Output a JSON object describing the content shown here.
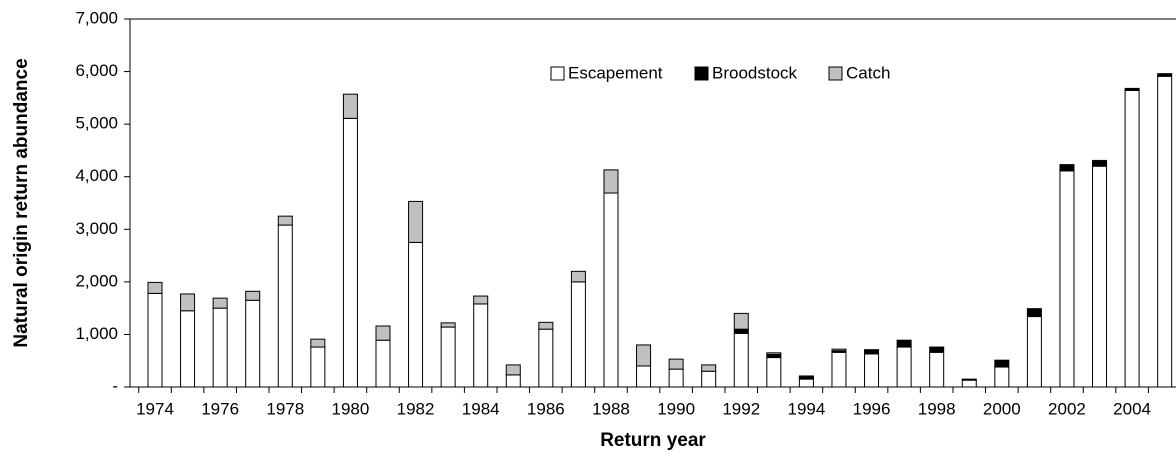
{
  "chart_data": {
    "type": "stacked_bar",
    "categories": [
      "1974",
      null,
      "1976",
      null,
      "1978",
      null,
      "1980",
      null,
      "1982",
      null,
      "1984",
      null,
      "1986",
      null,
      "1988",
      null,
      "1990",
      null,
      "1992",
      null,
      "1994",
      null,
      "1996",
      null,
      "1998",
      null,
      "2000",
      null,
      "2002",
      null,
      "2004",
      null
    ],
    "series": [
      {
        "name": "Escapement",
        "color": "#ffffff",
        "values": [
          1780,
          1450,
          1500,
          1650,
          3080,
          760,
          5110,
          890,
          2750,
          1140,
          1580,
          230,
          1100,
          2000,
          3690,
          400,
          340,
          300,
          1020,
          560,
          150,
          660,
          630,
          760,
          660,
          130,
          380,
          1340,
          4110,
          4200,
          5640,
          5910
        ]
      },
      {
        "name": "Broodstock",
        "color": "#000000",
        "values": [
          0,
          0,
          0,
          0,
          0,
          0,
          0,
          0,
          0,
          0,
          0,
          0,
          0,
          0,
          0,
          0,
          0,
          0,
          80,
          60,
          40,
          30,
          70,
          130,
          90,
          20,
          130,
          150,
          120,
          90,
          40,
          50
        ]
      },
      {
        "name": "Catch",
        "color": "#c0c0c0",
        "values": [
          210,
          320,
          190,
          170,
          170,
          150,
          460,
          270,
          780,
          80,
          150,
          190,
          130,
          200,
          440,
          400,
          190,
          120,
          300,
          30,
          20,
          30,
          10,
          0,
          10,
          0,
          0,
          0,
          0,
          20,
          0,
          0
        ]
      }
    ],
    "xlabel": "Return year",
    "ylabel": "Natural origin return abundance",
    "ylim": [
      0,
      7000
    ],
    "yticks": [
      {
        "value": 0,
        "label": "-"
      },
      {
        "value": 1000,
        "label": "1,000"
      },
      {
        "value": 2000,
        "label": "2,000"
      },
      {
        "value": 3000,
        "label": "3,000"
      },
      {
        "value": 4000,
        "label": "4,000"
      },
      {
        "value": 5000,
        "label": "5,000"
      },
      {
        "value": 6000,
        "label": "6,000"
      },
      {
        "value": 7000,
        "label": "7,000"
      }
    ],
    "legend": "top"
  }
}
